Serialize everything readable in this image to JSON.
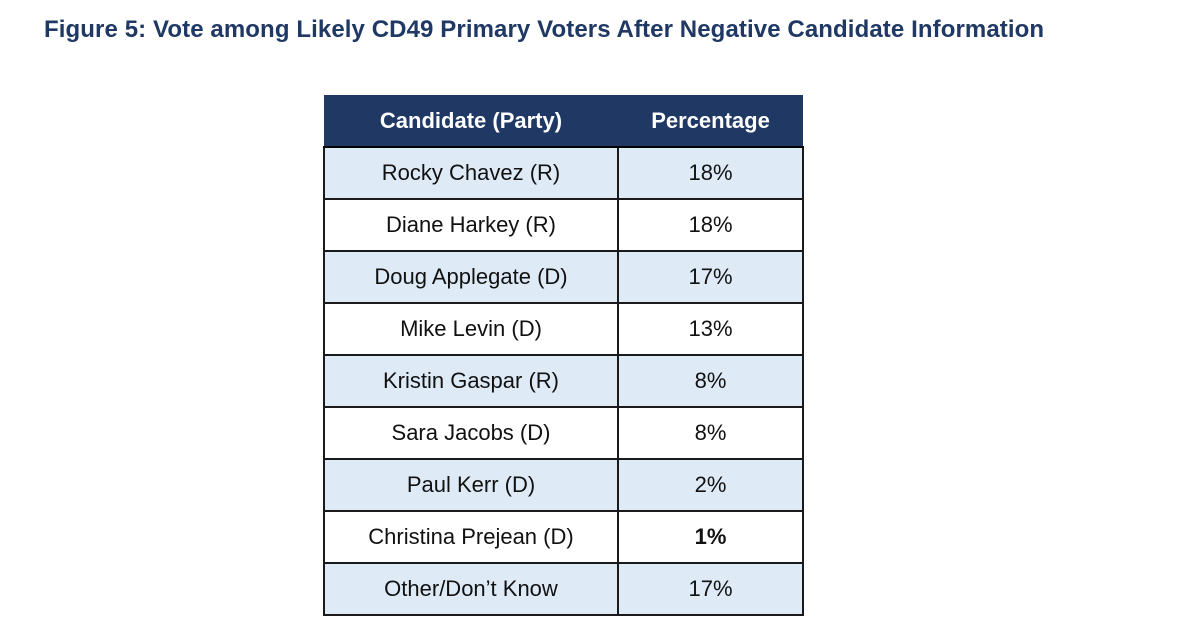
{
  "title": "Figure 5: Vote among Likely CD49 Primary Voters After Negative Candidate Information",
  "table": {
    "headers": {
      "candidate": "Candidate (Party)",
      "percentage": "Percentage"
    },
    "rows": [
      {
        "candidate": "Rocky Chavez (R)",
        "percentage": "18%"
      },
      {
        "candidate": "Diane Harkey (R)",
        "percentage": "18%"
      },
      {
        "candidate": "Doug Applegate (D)",
        "percentage": "17%"
      },
      {
        "candidate": "Mike Levin (D)",
        "percentage": "13%"
      },
      {
        "candidate": "Kristin Gaspar (R)",
        "percentage": "8%"
      },
      {
        "candidate": "Sara Jacobs (D)",
        "percentage": "8%"
      },
      {
        "candidate": "Paul Kerr (D)",
        "percentage": "2%"
      },
      {
        "candidate": "Christina Prejean (D)",
        "percentage": "1%"
      },
      {
        "candidate": "Other/Don’t Know",
        "percentage": "17%"
      }
    ]
  },
  "colors": {
    "header_bg": "#1f3864",
    "title_text": "#1f3864",
    "stripe": "#deebf7"
  }
}
